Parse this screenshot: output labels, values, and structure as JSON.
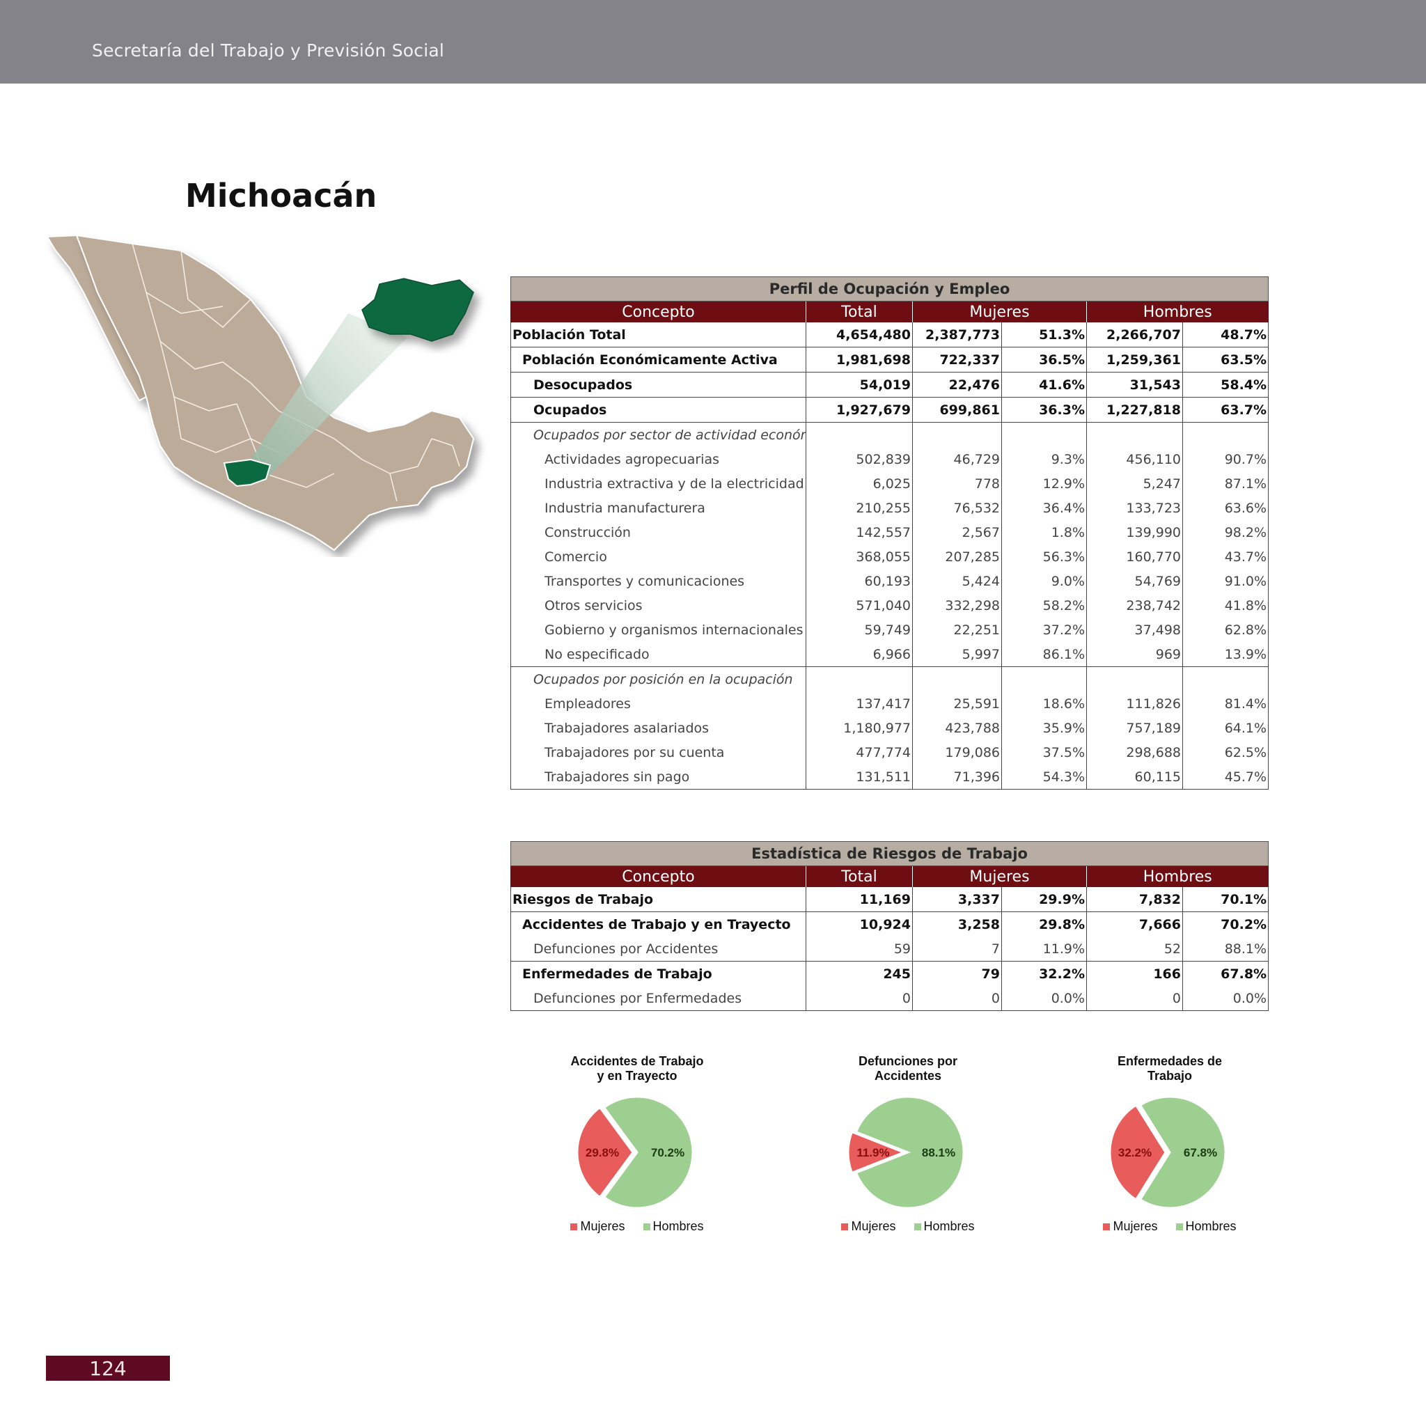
{
  "header": {
    "title": "Secretaría del Trabajo y Previsión Social"
  },
  "state_name": "Michoacán",
  "page_number": "124",
  "colors": {
    "header": "#848389",
    "accent": "#6e0e13",
    "title_row": "#b7ada3",
    "map_land": "#bcab99",
    "map_highlight": "#0c6a40",
    "mujeres": "#e85c5c",
    "hombres": "#9dcf90"
  },
  "perfil": {
    "title": "Perfil de Ocupación y Empleo",
    "headers": [
      "Concepto",
      "Total",
      "Mujeres",
      "Hombres"
    ],
    "rows": [
      {
        "label": "Población Total",
        "total": "4,654,480",
        "m": "2,387,773",
        "mp": "51.3%",
        "h": "2,266,707",
        "hp": "48.7%"
      },
      {
        "label": "Población Económicamente Activa",
        "total": "1,981,698",
        "m": "722,337",
        "mp": "36.5%",
        "h": "1,259,361",
        "hp": "63.5%"
      },
      {
        "label": "Desocupados",
        "total": "54,019",
        "m": "22,476",
        "mp": "41.6%",
        "h": "31,543",
        "hp": "58.4%"
      },
      {
        "label": "Ocupados",
        "total": "1,927,679",
        "m": "699,861",
        "mp": "36.3%",
        "h": "1,227,818",
        "hp": "63.7%"
      },
      {
        "label": "Ocupados por sector de actividad económica",
        "total": "",
        "m": "",
        "mp": "",
        "h": "",
        "hp": ""
      },
      {
        "label": "Actividades agropecuarias",
        "total": "502,839",
        "m": "46,729",
        "mp": "9.3%",
        "h": "456,110",
        "hp": "90.7%"
      },
      {
        "label": "Industria extractiva y de la electricidad",
        "total": "6,025",
        "m": "778",
        "mp": "12.9%",
        "h": "5,247",
        "hp": "87.1%"
      },
      {
        "label": "Industria manufacturera",
        "total": "210,255",
        "m": "76,532",
        "mp": "36.4%",
        "h": "133,723",
        "hp": "63.6%"
      },
      {
        "label": "Construcción",
        "total": "142,557",
        "m": "2,567",
        "mp": "1.8%",
        "h": "139,990",
        "hp": "98.2%"
      },
      {
        "label": "Comercio",
        "total": "368,055",
        "m": "207,285",
        "mp": "56.3%",
        "h": "160,770",
        "hp": "43.7%"
      },
      {
        "label": "Transportes y comunicaciones",
        "total": "60,193",
        "m": "5,424",
        "mp": "9.0%",
        "h": "54,769",
        "hp": "91.0%"
      },
      {
        "label": "Otros servicios",
        "total": "571,040",
        "m": "332,298",
        "mp": "58.2%",
        "h": "238,742",
        "hp": "41.8%"
      },
      {
        "label": "Gobierno y organismos internacionales",
        "total": "59,749",
        "m": "22,251",
        "mp": "37.2%",
        "h": "37,498",
        "hp": "62.8%"
      },
      {
        "label": "No especificado",
        "total": "6,966",
        "m": "5,997",
        "mp": "86.1%",
        "h": "969",
        "hp": "13.9%"
      },
      {
        "label": "Ocupados por posición en la ocupación",
        "total": "",
        "m": "",
        "mp": "",
        "h": "",
        "hp": ""
      },
      {
        "label": "Empleadores",
        "total": "137,417",
        "m": "25,591",
        "mp": "18.6%",
        "h": "111,826",
        "hp": "81.4%"
      },
      {
        "label": "Trabajadores asalariados",
        "total": "1,180,977",
        "m": "423,788",
        "mp": "35.9%",
        "h": "757,189",
        "hp": "64.1%"
      },
      {
        "label": "Trabajadores por su cuenta",
        "total": "477,774",
        "m": "179,086",
        "mp": "37.5%",
        "h": "298,688",
        "hp": "62.5%"
      },
      {
        "label": "Trabajadores sin pago",
        "total": "131,511",
        "m": "71,396",
        "mp": "54.3%",
        "h": "60,115",
        "hp": "45.7%"
      }
    ]
  },
  "riesgos": {
    "title": "Estadística de Riesgos de Trabajo",
    "headers": [
      "Concepto",
      "Total",
      "Mujeres",
      "Hombres"
    ],
    "rows": [
      {
        "label": "Riesgos de Trabajo",
        "total": "11,169",
        "m": "3,337",
        "mp": "29.9%",
        "h": "7,832",
        "hp": "70.1%"
      },
      {
        "label": "Accidentes de Trabajo y en Trayecto",
        "total": "10,924",
        "m": "3,258",
        "mp": "29.8%",
        "h": "7,666",
        "hp": "70.2%"
      },
      {
        "label": "Defunciones por Accidentes",
        "total": "59",
        "m": "7",
        "mp": "11.9%",
        "h": "52",
        "hp": "88.1%"
      },
      {
        "label": "Enfermedades de Trabajo",
        "total": "245",
        "m": "79",
        "mp": "32.2%",
        "h": "166",
        "hp": "67.8%"
      },
      {
        "label": "Defunciones por Enfermedades",
        "total": "0",
        "m": "0",
        "mp": "0.0%",
        "h": "0",
        "hp": "0.0%"
      }
    ]
  },
  "chart_data": [
    {
      "type": "pie",
      "title": "Accidentes de Trabajo y en Trayecto",
      "title_lines": [
        "Accidentes de Trabajo",
        "y en Trayecto"
      ],
      "categories": [
        "Mujeres",
        "Hombres"
      ],
      "values": [
        29.8,
        70.2
      ],
      "labels": [
        "29.8%",
        "70.2%"
      ],
      "legend": "bottom"
    },
    {
      "type": "pie",
      "title": "Defunciones por Accidentes",
      "title_lines": [
        "Defunciones por",
        "Accidentes"
      ],
      "categories": [
        "Mujeres",
        "Hombres"
      ],
      "values": [
        11.9,
        88.1
      ],
      "labels": [
        "11.9%",
        "88.1%"
      ],
      "legend": "bottom"
    },
    {
      "type": "pie",
      "title": "Enfermedades de Trabajo",
      "title_lines": [
        "Enfermedades de",
        "Trabajo"
      ],
      "categories": [
        "Mujeres",
        "Hombres"
      ],
      "values": [
        32.2,
        67.8
      ],
      "labels": [
        "32.2%",
        "67.8%"
      ],
      "legend": "bottom"
    }
  ]
}
